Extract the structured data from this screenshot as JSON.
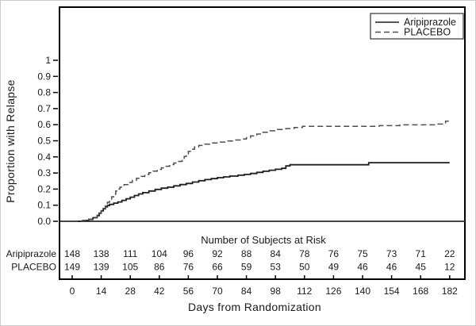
{
  "labels": {
    "y_axis": "Proportion with Relapse",
    "x_axis": "Days from Randomization",
    "risk_title": "Number of Subjects at Risk"
  },
  "colors": {
    "axis": "#000000",
    "text": "#1a1a1a",
    "solid_line": "#1f1f1f",
    "dashed_line": "#4d4d4d",
    "legend_border": "#333333",
    "figure_border": "#cccccc"
  },
  "chart_data": {
    "type": "line",
    "subtype": "kaplan-meier-step",
    "title": "",
    "xlabel": "Days from Randomization",
    "ylabel": "Proportion with Relapse",
    "xlim": [
      0,
      182
    ],
    "ylim": [
      0,
      1
    ],
    "grid": false,
    "xticks": [
      0,
      14,
      28,
      42,
      56,
      70,
      84,
      98,
      112,
      126,
      140,
      154,
      168,
      182
    ],
    "ytick_labels": [
      "0.0",
      "0.1",
      "0.2",
      "0.3",
      "0.4",
      "0.5",
      "0.6",
      "0.7",
      "0.8",
      "0.9",
      "1"
    ],
    "legend": {
      "position": "top-right",
      "entries": [
        {
          "label": "Aripiprazole",
          "line_style": "solid"
        },
        {
          "label": "PLACEBO",
          "line_style": "dashed"
        }
      ]
    },
    "series": [
      {
        "name": "Aripiprazole",
        "line_style": "solid",
        "points": [
          [
            0,
            0
          ],
          [
            5,
            0.005
          ],
          [
            8,
            0.012
          ],
          [
            10,
            0.022
          ],
          [
            12,
            0.035
          ],
          [
            13,
            0.05
          ],
          [
            14,
            0.065
          ],
          [
            15,
            0.078
          ],
          [
            16,
            0.09
          ],
          [
            17,
            0.098
          ],
          [
            18,
            0.105
          ],
          [
            20,
            0.113
          ],
          [
            22,
            0.12
          ],
          [
            24,
            0.13
          ],
          [
            26,
            0.14
          ],
          [
            28,
            0.15
          ],
          [
            30,
            0.16
          ],
          [
            32,
            0.17
          ],
          [
            34,
            0.178
          ],
          [
            37,
            0.188
          ],
          [
            40,
            0.198
          ],
          [
            43,
            0.206
          ],
          [
            46,
            0.212
          ],
          [
            49,
            0.22
          ],
          [
            52,
            0.228
          ],
          [
            55,
            0.235
          ],
          [
            58,
            0.244
          ],
          [
            61,
            0.252
          ],
          [
            64,
            0.259
          ],
          [
            67,
            0.265
          ],
          [
            70,
            0.271
          ],
          [
            73,
            0.276
          ],
          [
            76,
            0.281
          ],
          [
            80,
            0.286
          ],
          [
            83,
            0.291
          ],
          [
            86,
            0.297
          ],
          [
            89,
            0.304
          ],
          [
            92,
            0.311
          ],
          [
            95,
            0.317
          ],
          [
            98,
            0.323
          ],
          [
            101,
            0.329
          ],
          [
            103,
            0.344
          ],
          [
            105,
            0.351
          ],
          [
            143,
            0.364
          ],
          [
            182,
            0.364
          ]
        ]
      },
      {
        "name": "PLACEBO",
        "line_style": "dashed",
        "points": [
          [
            0,
            0
          ],
          [
            5,
            0.005
          ],
          [
            8,
            0.014
          ],
          [
            10,
            0.024
          ],
          [
            12,
            0.038
          ],
          [
            13,
            0.052
          ],
          [
            14,
            0.065
          ],
          [
            15,
            0.08
          ],
          [
            16,
            0.1
          ],
          [
            17,
            0.118
          ],
          [
            18,
            0.138
          ],
          [
            19,
            0.152
          ],
          [
            20,
            0.168
          ],
          [
            21,
            0.188
          ],
          [
            22,
            0.2
          ],
          [
            23,
            0.212
          ],
          [
            25,
            0.228
          ],
          [
            27,
            0.242
          ],
          [
            29,
            0.254
          ],
          [
            31,
            0.267
          ],
          [
            33,
            0.279
          ],
          [
            35,
            0.291
          ],
          [
            37,
            0.302
          ],
          [
            39,
            0.312
          ],
          [
            41,
            0.322
          ],
          [
            43,
            0.332
          ],
          [
            45,
            0.342
          ],
          [
            47,
            0.352
          ],
          [
            49,
            0.362
          ],
          [
            51,
            0.372
          ],
          [
            53,
            0.388
          ],
          [
            54,
            0.403
          ],
          [
            55,
            0.418
          ],
          [
            56,
            0.434
          ],
          [
            57,
            0.448
          ],
          [
            59,
            0.462
          ],
          [
            61,
            0.471
          ],
          [
            64,
            0.479
          ],
          [
            67,
            0.486
          ],
          [
            71,
            0.492
          ],
          [
            74,
            0.499
          ],
          [
            78,
            0.505
          ],
          [
            81,
            0.511
          ],
          [
            84,
            0.519
          ],
          [
            86,
            0.53
          ],
          [
            89,
            0.542
          ],
          [
            92,
            0.553
          ],
          [
            95,
            0.562
          ],
          [
            99,
            0.57
          ],
          [
            103,
            0.576
          ],
          [
            107,
            0.583
          ],
          [
            111,
            0.59
          ],
          [
            148,
            0.594
          ],
          [
            158,
            0.599
          ],
          [
            176,
            0.604
          ],
          [
            180,
            0.622
          ],
          [
            182,
            0.636
          ]
        ]
      }
    ],
    "risk_table": {
      "title": "Number of Subjects at Risk",
      "columns_days": [
        0,
        14,
        28,
        42,
        56,
        70,
        84,
        98,
        112,
        126,
        140,
        154,
        168,
        182
      ],
      "rows": [
        {
          "label": "Aripiprazole",
          "counts": [
            148,
            138,
            111,
            104,
            96,
            92,
            88,
            84,
            78,
            76,
            75,
            73,
            71,
            22
          ]
        },
        {
          "label": "PLACEBO",
          "counts": [
            149,
            139,
            105,
            86,
            76,
            66,
            59,
            53,
            50,
            49,
            46,
            46,
            45,
            12
          ]
        }
      ]
    }
  }
}
